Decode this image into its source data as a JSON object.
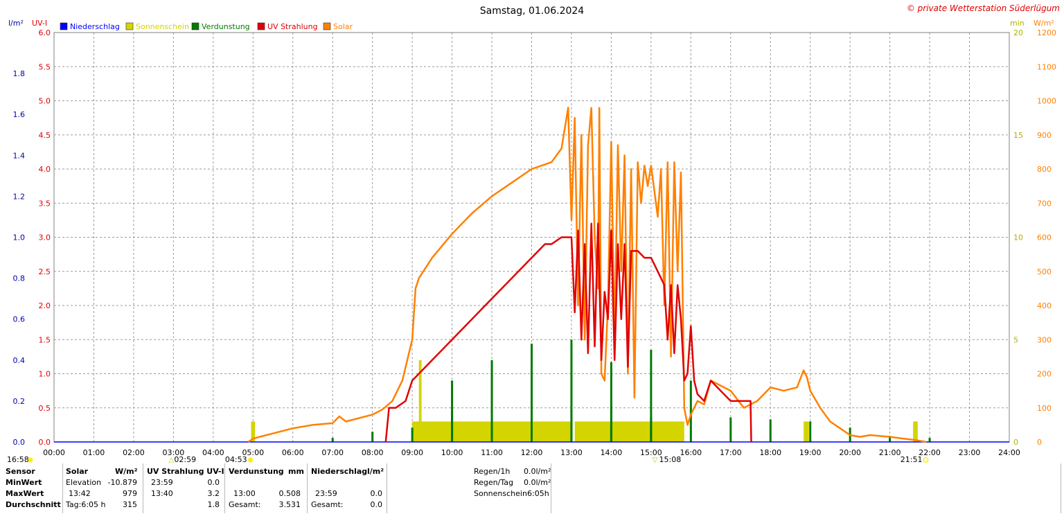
{
  "header": {
    "title": "Samstag, 01.06.2024",
    "copyright": "© private Wetterstation Süderlügum"
  },
  "axes": {
    "left1_unit": "l/m²",
    "left2_unit": "UV-I",
    "right1_unit": "min",
    "right2_unit": "W/m²",
    "left1_ticks": [
      "0.0",
      "0.2",
      "0.4",
      "0.6",
      "0.8",
      "1.0",
      "1.2",
      "1.4",
      "1.6",
      "1.8"
    ],
    "left2_ticks": [
      "0.0",
      "0.5",
      "1.0",
      "1.5",
      "2.0",
      "2.5",
      "3.0",
      "3.5",
      "4.0",
      "4.5",
      "5.0",
      "5.5",
      "6.0"
    ],
    "right1_ticks": [
      "0",
      "5",
      "10",
      "15",
      "20"
    ],
    "right2_ticks": [
      "0",
      "100",
      "200",
      "300",
      "400",
      "500",
      "600",
      "700",
      "800",
      "900",
      "1000",
      "1100",
      "1200"
    ],
    "x_ticks": [
      "00:00",
      "01:00",
      "02:00",
      "03:00",
      "04:00",
      "05:00",
      "06:00",
      "07:00",
      "08:00",
      "09:00",
      "10:00",
      "11:00",
      "12:00",
      "13:00",
      "14:00",
      "15:00",
      "16:00",
      "17:00",
      "18:00",
      "19:00",
      "20:00",
      "21:00",
      "22:00",
      "23:00",
      "24:00"
    ]
  },
  "legend": [
    {
      "label": "Niederschlag",
      "color": "#0000ff"
    },
    {
      "label": "Sonnenschein",
      "color": "#d4d400"
    },
    {
      "label": "Verdunstung",
      "color": "#007a00"
    },
    {
      "label": "UV Strahlung",
      "color": "#e00000"
    },
    {
      "label": "Solar",
      "color": "#ff8000"
    }
  ],
  "astro": {
    "sunset_prev": "16:58",
    "moonrise": "02:59",
    "sunrise": "04:53",
    "moonset": "15:08",
    "sunset": "21:51"
  },
  "chart_data": {
    "type": "line",
    "title": "Samstag, 01.06.2024",
    "x_range": [
      "00:00",
      "24:00"
    ],
    "series": [
      {
        "name": "Solar",
        "unit": "W/m²",
        "axis": "right2",
        "ylim": [
          0,
          1200
        ],
        "color": "#ff8000",
        "x": [
          "04:53",
          "05:00",
          "05:30",
          "06:00",
          "06:30",
          "07:00",
          "07:10",
          "07:20",
          "07:30",
          "08:00",
          "08:15",
          "08:30",
          "08:45",
          "09:00",
          "09:05",
          "09:10",
          "09:30",
          "10:00",
          "10:30",
          "11:00",
          "11:30",
          "12:00",
          "12:15",
          "12:30",
          "12:45",
          "12:50",
          "12:55",
          "13:00",
          "13:05",
          "13:10",
          "13:15",
          "13:20",
          "13:25",
          "13:30",
          "13:35",
          "13:40",
          "13:42",
          "13:45",
          "13:50",
          "13:55",
          "14:00",
          "14:05",
          "14:10",
          "14:15",
          "14:20",
          "14:25",
          "14:30",
          "14:35",
          "14:40",
          "14:45",
          "14:50",
          "14:55",
          "15:00",
          "15:10",
          "15:15",
          "15:20",
          "15:25",
          "15:30",
          "15:35",
          "15:40",
          "15:45",
          "15:50",
          "15:55",
          "16:00",
          "16:10",
          "16:20",
          "16:30",
          "17:00",
          "17:20",
          "17:40",
          "18:00",
          "18:20",
          "18:40",
          "18:50",
          "18:55",
          "19:00",
          "19:15",
          "19:30",
          "19:45",
          "20:00",
          "20:15",
          "20:30",
          "21:00",
          "21:20",
          "21:40",
          "21:55"
        ],
        "values": [
          0,
          10,
          25,
          40,
          50,
          55,
          75,
          60,
          65,
          80,
          95,
          120,
          180,
          300,
          450,
          480,
          540,
          610,
          670,
          720,
          760,
          800,
          810,
          820,
          860,
          920,
          980,
          650,
          950,
          400,
          900,
          300,
          870,
          979,
          600,
          450,
          979,
          200,
          180,
          400,
          880,
          300,
          870,
          500,
          840,
          200,
          800,
          130,
          820,
          700,
          810,
          750,
          810,
          660,
          800,
          400,
          820,
          250,
          820,
          500,
          790,
          100,
          50,
          80,
          120,
          110,
          180,
          150,
          100,
          120,
          160,
          150,
          160,
          210,
          190,
          150,
          100,
          60,
          40,
          20,
          15,
          20,
          15,
          10,
          5,
          0
        ]
      },
      {
        "name": "UV Strahlung",
        "unit": "UV-I",
        "axis": "left2",
        "ylim": [
          0,
          6
        ],
        "color": "#e00000",
        "x": [
          "08:20",
          "08:25",
          "08:35",
          "08:50",
          "09:00",
          "09:10",
          "09:30",
          "10:00",
          "10:30",
          "11:00",
          "11:30",
          "12:00",
          "12:10",
          "12:20",
          "12:30",
          "12:45",
          "13:00",
          "13:05",
          "13:10",
          "13:15",
          "13:20",
          "13:25",
          "13:30",
          "13:35",
          "13:40",
          "13:45",
          "13:50",
          "13:55",
          "14:00",
          "14:05",
          "14:10",
          "14:15",
          "14:20",
          "14:25",
          "14:30",
          "14:40",
          "14:50",
          "15:00",
          "15:10",
          "15:20",
          "15:25",
          "15:30",
          "15:35",
          "15:40",
          "15:45",
          "15:50",
          "15:55",
          "16:00",
          "16:05",
          "16:10",
          "16:20",
          "16:30",
          "16:40",
          "17:00",
          "17:20",
          "17:30",
          "17:31"
        ],
        "values": [
          0,
          0.5,
          0.5,
          0.6,
          0.9,
          1.0,
          1.2,
          1.5,
          1.8,
          2.1,
          2.4,
          2.7,
          2.8,
          2.9,
          2.9,
          3.0,
          3.0,
          1.9,
          3.1,
          1.5,
          2.9,
          1.3,
          3.2,
          1.4,
          3.2,
          1.2,
          2.2,
          1.8,
          3.1,
          1.2,
          2.9,
          1.8,
          2.9,
          1.1,
          2.8,
          2.8,
          2.7,
          2.7,
          2.5,
          2.3,
          1.5,
          2.3,
          1.3,
          2.3,
          1.8,
          0.9,
          1.0,
          1.7,
          0.9,
          0.7,
          0.6,
          0.9,
          0.8,
          0.6,
          0.6,
          0.6,
          0
        ]
      },
      {
        "name": "Sonnenschein",
        "unit": "min",
        "axis": "right1",
        "ylim": [
          0,
          20
        ],
        "color": "#d4d400",
        "bars": [
          {
            "from": "04:57",
            "to": "05:03",
            "value": 1
          },
          {
            "from": "09:10",
            "to": "09:14",
            "value": 4
          },
          {
            "from": "09:00",
            "to": "13:00",
            "value": 1
          },
          {
            "from": "13:05",
            "to": "14:55",
            "value": 1
          },
          {
            "from": "14:55",
            "to": "15:50",
            "value": 1
          },
          {
            "from": "18:50",
            "to": "18:58",
            "value": 1
          },
          {
            "from": "21:35",
            "to": "21:42",
            "value": 1
          }
        ]
      },
      {
        "name": "Verdunstung",
        "unit": "mm",
        "axis": "right1",
        "ylim": [
          0,
          20
        ],
        "color": "#007a00",
        "bars": [
          {
            "at": "07:00",
            "value": 0.2
          },
          {
            "at": "08:00",
            "value": 0.5
          },
          {
            "at": "09:00",
            "value": 0.7
          },
          {
            "at": "10:00",
            "value": 1.5
          },
          {
            "at": "10:00",
            "value": 3.0
          },
          {
            "at": "11:00",
            "value": 4.0
          },
          {
            "at": "12:00",
            "value": 1.4
          },
          {
            "at": "12:00",
            "value": 4.8
          },
          {
            "at": "13:00",
            "value": 1.6
          },
          {
            "at": "13:00",
            "value": 5.0
          },
          {
            "at": "14:00",
            "value": 1.8
          },
          {
            "at": "14:00",
            "value": 3.9
          },
          {
            "at": "15:00",
            "value": 1.2
          },
          {
            "at": "15:00",
            "value": 4.5
          },
          {
            "at": "16:00",
            "value": 3.0
          },
          {
            "at": "17:00",
            "value": 1.2
          },
          {
            "at": "18:00",
            "value": 1.1
          },
          {
            "at": "19:00",
            "value": 1.0
          },
          {
            "at": "20:00",
            "value": 0.7
          },
          {
            "at": "21:00",
            "value": 0.3
          },
          {
            "at": "22:00",
            "value": 0.2
          }
        ]
      },
      {
        "name": "Niederschlag",
        "unit": "l/m²",
        "axis": "left1",
        "ylim": [
          0,
          2
        ],
        "color": "#0000ff",
        "x": [
          "00:00",
          "24:00"
        ],
        "values": [
          0,
          0
        ]
      }
    ]
  },
  "stats_table": {
    "headers": {
      "sensor": "Sensor",
      "solar": "Solar",
      "solar_unit": "W/m²",
      "uv": "UV Strahlung UV-I",
      "evap": "Verdunstung",
      "evap_unit": "mm",
      "rain": "Niederschlag",
      "rain_unit": "l/m²"
    },
    "rows": [
      {
        "label": "MinWert",
        "solar_a": "Elevation",
        "solar_b": "-10.879",
        "uv_a": "23:59",
        "uv_b": "0.0",
        "evap_a": "",
        "evap_b": "",
        "rain_a": "",
        "rain_b": ""
      },
      {
        "label": "MaxWert",
        "solar_a": "13:42",
        "solar_b": "979",
        "uv_a": "13:40",
        "uv_b": "3.2",
        "evap_a": "13:00",
        "evap_b": "0.508",
        "rain_a": "23:59",
        "rain_b": "0.0"
      },
      {
        "label": "Durchschnitt",
        "solar_a": "Tag:6:05 h",
        "solar_b": "315",
        "uv_a": "",
        "uv_b": "1.8",
        "evap_a": "Gesamt:",
        "evap_b": "3.531",
        "rain_a": "Gesamt:",
        "rain_b": "0.0"
      }
    ],
    "summary": [
      {
        "label": "Regen/1h",
        "value": "0.0l/m²"
      },
      {
        "label": "Regen/Tag",
        "value": "0.0l/m²"
      },
      {
        "label": "Sonnenschein",
        "value": "6:05h"
      }
    ]
  }
}
